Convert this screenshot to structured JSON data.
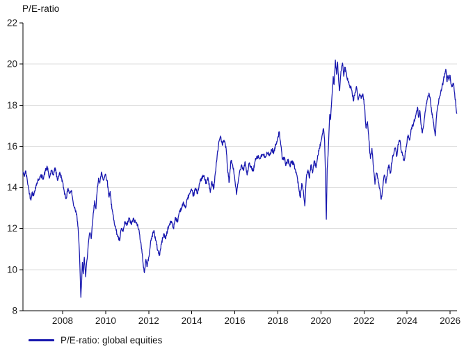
{
  "title": "P/E-ratio",
  "legend": {
    "label": "P/E-ratio: global equities"
  },
  "colors": {
    "series": "#1616ae",
    "grid": "#dcdcdc",
    "axis": "#000000",
    "tick_text": "#1a1a1a",
    "background": "#ffffff"
  },
  "chart_data": {
    "type": "line",
    "title": "P/E-ratio",
    "xlabel": "",
    "ylabel": "P/E-ratio",
    "xlim": [
      2006.16,
      2026.32
    ],
    "ylim": [
      8,
      22
    ],
    "x_ticks": [
      2008,
      2010,
      2012,
      2014,
      2016,
      2018,
      2020,
      2022,
      2024,
      2026
    ],
    "y_ticks": [
      8,
      10,
      12,
      14,
      16,
      18,
      20,
      22
    ],
    "grid": "horizontal",
    "legend_position": "bottom-left",
    "noise": {
      "amplitude": 0.1,
      "step_years": 0.013,
      "seed": 42,
      "clamp": [
        8.3,
        20.3
      ]
    },
    "series": [
      {
        "name": "P/E-ratio: global equities",
        "points": [
          [
            2006.16,
            14.75
          ],
          [
            2006.22,
            14.55
          ],
          [
            2006.28,
            14.8
          ],
          [
            2006.36,
            14.35
          ],
          [
            2006.44,
            13.85
          ],
          [
            2006.52,
            13.4
          ],
          [
            2006.58,
            13.75
          ],
          [
            2006.66,
            13.6
          ],
          [
            2006.74,
            14.0
          ],
          [
            2006.84,
            14.3
          ],
          [
            2006.94,
            14.5
          ],
          [
            2007.02,
            14.55
          ],
          [
            2007.1,
            14.45
          ],
          [
            2007.2,
            14.8
          ],
          [
            2007.29,
            15.0
          ],
          [
            2007.38,
            14.45
          ],
          [
            2007.48,
            14.8
          ],
          [
            2007.56,
            14.6
          ],
          [
            2007.66,
            14.95
          ],
          [
            2007.76,
            14.35
          ],
          [
            2007.86,
            14.7
          ],
          [
            2007.96,
            14.45
          ],
          [
            2008.06,
            13.9
          ],
          [
            2008.16,
            13.45
          ],
          [
            2008.26,
            13.95
          ],
          [
            2008.33,
            13.7
          ],
          [
            2008.41,
            13.85
          ],
          [
            2008.5,
            13.2
          ],
          [
            2008.58,
            12.95
          ],
          [
            2008.66,
            12.7
          ],
          [
            2008.72,
            12.05
          ],
          [
            2008.77,
            11.1
          ],
          [
            2008.81,
            10.0
          ],
          [
            2008.85,
            8.65
          ],
          [
            2008.89,
            9.5
          ],
          [
            2008.92,
            10.35
          ],
          [
            2008.96,
            9.8
          ],
          [
            2009.01,
            10.6
          ],
          [
            2009.07,
            9.65
          ],
          [
            2009.13,
            10.45
          ],
          [
            2009.2,
            11.3
          ],
          [
            2009.27,
            11.8
          ],
          [
            2009.33,
            11.5
          ],
          [
            2009.41,
            12.5
          ],
          [
            2009.49,
            13.35
          ],
          [
            2009.55,
            12.95
          ],
          [
            2009.61,
            13.9
          ],
          [
            2009.67,
            14.45
          ],
          [
            2009.73,
            14.2
          ],
          [
            2009.81,
            14.75
          ],
          [
            2009.89,
            14.35
          ],
          [
            2009.99,
            14.65
          ],
          [
            2010.07,
            14.35
          ],
          [
            2010.15,
            13.55
          ],
          [
            2010.21,
            13.8
          ],
          [
            2010.29,
            12.95
          ],
          [
            2010.39,
            12.4
          ],
          [
            2010.49,
            11.9
          ],
          [
            2010.57,
            11.6
          ],
          [
            2010.65,
            11.4
          ],
          [
            2010.73,
            12.0
          ],
          [
            2010.81,
            11.85
          ],
          [
            2010.9,
            12.3
          ],
          [
            2010.99,
            12.15
          ],
          [
            2011.09,
            12.5
          ],
          [
            2011.19,
            12.2
          ],
          [
            2011.29,
            12.45
          ],
          [
            2011.39,
            12.3
          ],
          [
            2011.49,
            12.2
          ],
          [
            2011.57,
            11.75
          ],
          [
            2011.65,
            11.2
          ],
          [
            2011.73,
            10.4
          ],
          [
            2011.8,
            9.85
          ],
          [
            2011.87,
            10.5
          ],
          [
            2011.93,
            10.15
          ],
          [
            2012.0,
            10.6
          ],
          [
            2012.08,
            11.25
          ],
          [
            2012.16,
            11.65
          ],
          [
            2012.24,
            11.9
          ],
          [
            2012.33,
            11.4
          ],
          [
            2012.42,
            10.95
          ],
          [
            2012.5,
            10.7
          ],
          [
            2012.6,
            11.3
          ],
          [
            2012.7,
            11.75
          ],
          [
            2012.78,
            11.5
          ],
          [
            2012.88,
            11.95
          ],
          [
            2012.97,
            12.2
          ],
          [
            2013.06,
            12.35
          ],
          [
            2013.15,
            12.0
          ],
          [
            2013.24,
            12.55
          ],
          [
            2013.33,
            12.3
          ],
          [
            2013.43,
            12.85
          ],
          [
            2013.53,
            13.0
          ],
          [
            2013.62,
            13.25
          ],
          [
            2013.71,
            13.0
          ],
          [
            2013.81,
            13.5
          ],
          [
            2013.91,
            13.7
          ],
          [
            2014.0,
            13.85
          ],
          [
            2014.08,
            13.6
          ],
          [
            2014.17,
            13.95
          ],
          [
            2014.26,
            13.7
          ],
          [
            2014.36,
            14.2
          ],
          [
            2014.46,
            14.45
          ],
          [
            2014.56,
            14.55
          ],
          [
            2014.66,
            14.2
          ],
          [
            2014.76,
            14.45
          ],
          [
            2014.86,
            13.75
          ],
          [
            2014.94,
            14.3
          ],
          [
            2015.02,
            13.95
          ],
          [
            2015.1,
            14.75
          ],
          [
            2015.18,
            15.55
          ],
          [
            2015.27,
            16.25
          ],
          [
            2015.34,
            16.5
          ],
          [
            2015.42,
            16.05
          ],
          [
            2015.5,
            16.3
          ],
          [
            2015.6,
            15.85
          ],
          [
            2015.68,
            14.7
          ],
          [
            2015.74,
            14.25
          ],
          [
            2015.82,
            15.3
          ],
          [
            2015.9,
            15.1
          ],
          [
            2015.99,
            14.5
          ],
          [
            2016.08,
            13.65
          ],
          [
            2016.16,
            14.3
          ],
          [
            2016.24,
            14.85
          ],
          [
            2016.32,
            15.1
          ],
          [
            2016.4,
            14.85
          ],
          [
            2016.48,
            15.25
          ],
          [
            2016.57,
            14.6
          ],
          [
            2016.66,
            15.15
          ],
          [
            2016.76,
            14.95
          ],
          [
            2016.85,
            14.8
          ],
          [
            2016.95,
            15.3
          ],
          [
            2017.06,
            15.5
          ],
          [
            2017.17,
            15.4
          ],
          [
            2017.28,
            15.6
          ],
          [
            2017.39,
            15.5
          ],
          [
            2017.5,
            15.68
          ],
          [
            2017.61,
            15.55
          ],
          [
            2017.72,
            15.85
          ],
          [
            2017.81,
            15.7
          ],
          [
            2017.91,
            16.1
          ],
          [
            2018.0,
            16.45
          ],
          [
            2018.07,
            16.7
          ],
          [
            2018.13,
            16.1
          ],
          [
            2018.21,
            15.35
          ],
          [
            2018.29,
            15.45
          ],
          [
            2018.38,
            15.1
          ],
          [
            2018.47,
            15.35
          ],
          [
            2018.56,
            15.05
          ],
          [
            2018.65,
            15.28
          ],
          [
            2018.74,
            15.1
          ],
          [
            2018.82,
            14.85
          ],
          [
            2018.9,
            14.5
          ],
          [
            2018.98,
            13.9
          ],
          [
            2019.04,
            13.5
          ],
          [
            2019.11,
            14.2
          ],
          [
            2019.18,
            13.85
          ],
          [
            2019.25,
            13.1
          ],
          [
            2019.32,
            14.45
          ],
          [
            2019.4,
            14.85
          ],
          [
            2019.47,
            14.45
          ],
          [
            2019.54,
            15.1
          ],
          [
            2019.61,
            14.7
          ],
          [
            2019.69,
            15.3
          ],
          [
            2019.77,
            14.95
          ],
          [
            2019.85,
            15.55
          ],
          [
            2019.92,
            15.9
          ],
          [
            2020.0,
            16.2
          ],
          [
            2020.06,
            16.55
          ],
          [
            2020.12,
            16.85
          ],
          [
            2020.17,
            16.3
          ],
          [
            2020.21,
            14.6
          ],
          [
            2020.25,
            12.45
          ],
          [
            2020.29,
            14.9
          ],
          [
            2020.33,
            15.55
          ],
          [
            2020.37,
            16.6
          ],
          [
            2020.41,
            17.55
          ],
          [
            2020.45,
            17.3
          ],
          [
            2020.51,
            18.4
          ],
          [
            2020.57,
            19.4
          ],
          [
            2020.61,
            19.0
          ],
          [
            2020.67,
            20.2
          ],
          [
            2020.72,
            19.5
          ],
          [
            2020.77,
            20.1
          ],
          [
            2020.82,
            19.2
          ],
          [
            2020.87,
            18.7
          ],
          [
            2020.93,
            19.65
          ],
          [
            2021.0,
            20.05
          ],
          [
            2021.06,
            19.4
          ],
          [
            2021.12,
            19.85
          ],
          [
            2021.2,
            19.4
          ],
          [
            2021.28,
            19.1
          ],
          [
            2021.36,
            18.9
          ],
          [
            2021.44,
            18.7
          ],
          [
            2021.51,
            18.2
          ],
          [
            2021.58,
            18.6
          ],
          [
            2021.66,
            18.85
          ],
          [
            2021.73,
            18.25
          ],
          [
            2021.8,
            18.55
          ],
          [
            2021.88,
            18.35
          ],
          [
            2021.95,
            18.55
          ],
          [
            2022.03,
            17.9
          ],
          [
            2022.09,
            16.9
          ],
          [
            2022.16,
            17.2
          ],
          [
            2022.23,
            16.3
          ],
          [
            2022.3,
            15.4
          ],
          [
            2022.37,
            15.9
          ],
          [
            2022.44,
            15.0
          ],
          [
            2022.51,
            14.15
          ],
          [
            2022.58,
            14.7
          ],
          [
            2022.65,
            14.45
          ],
          [
            2022.72,
            13.95
          ],
          [
            2022.8,
            13.42
          ],
          [
            2022.87,
            13.95
          ],
          [
            2022.94,
            14.6
          ],
          [
            2023.02,
            14.2
          ],
          [
            2023.1,
            14.85
          ],
          [
            2023.16,
            15.1
          ],
          [
            2023.23,
            14.7
          ],
          [
            2023.32,
            15.4
          ],
          [
            2023.4,
            15.75
          ],
          [
            2023.46,
            15.9
          ],
          [
            2023.52,
            15.5
          ],
          [
            2023.59,
            16.1
          ],
          [
            2023.66,
            16.3
          ],
          [
            2023.73,
            15.8
          ],
          [
            2023.8,
            15.55
          ],
          [
            2023.87,
            15.3
          ],
          [
            2023.96,
            16.0
          ],
          [
            2024.05,
            16.55
          ],
          [
            2024.12,
            16.3
          ],
          [
            2024.21,
            16.9
          ],
          [
            2024.3,
            17.1
          ],
          [
            2024.37,
            17.35
          ],
          [
            2024.43,
            17.65
          ],
          [
            2024.49,
            17.9
          ],
          [
            2024.54,
            17.4
          ],
          [
            2024.59,
            17.75
          ],
          [
            2024.65,
            17.05
          ],
          [
            2024.71,
            16.65
          ],
          [
            2024.77,
            17.0
          ],
          [
            2024.83,
            17.6
          ],
          [
            2024.9,
            18.1
          ],
          [
            2024.97,
            18.45
          ],
          [
            2025.03,
            18.55
          ],
          [
            2025.09,
            18.2
          ],
          [
            2025.15,
            17.65
          ],
          [
            2025.21,
            17.3
          ],
          [
            2025.26,
            16.85
          ],
          [
            2025.31,
            16.5
          ],
          [
            2025.37,
            17.45
          ],
          [
            2025.43,
            18.0
          ],
          [
            2025.49,
            18.3
          ],
          [
            2025.55,
            18.55
          ],
          [
            2025.62,
            18.85
          ],
          [
            2025.68,
            19.15
          ],
          [
            2025.75,
            19.55
          ],
          [
            2025.8,
            19.75
          ],
          [
            2025.85,
            19.15
          ],
          [
            2025.9,
            19.45
          ],
          [
            2025.95,
            19.2
          ],
          [
            2026.0,
            19.45
          ],
          [
            2026.05,
            19.0
          ],
          [
            2026.1,
            18.9
          ],
          [
            2026.16,
            19.05
          ],
          [
            2026.21,
            18.6
          ],
          [
            2026.26,
            18.1
          ],
          [
            2026.31,
            17.6
          ]
        ]
      }
    ]
  }
}
